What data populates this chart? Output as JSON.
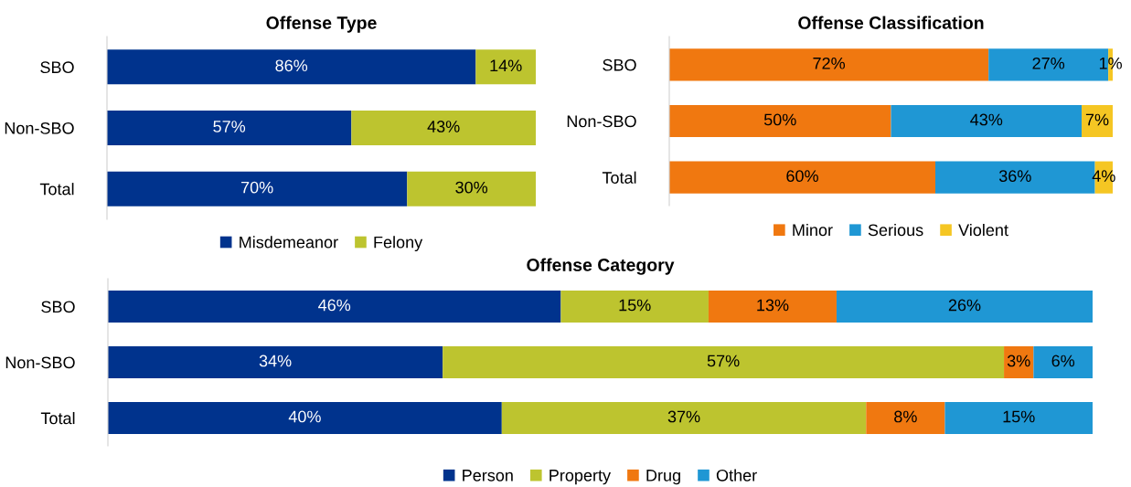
{
  "chart_data": [
    {
      "type": "bar",
      "orientation": "horizontal",
      "stacked": true,
      "title": "Offense Type",
      "categories": [
        "SBO",
        "Non-SBO",
        "Total"
      ],
      "legend": "bottom",
      "grid": false,
      "tick_labels": "y",
      "series": [
        {
          "name": "Misdemeanor",
          "color": "#00338d",
          "values": [
            86,
            57,
            70
          ],
          "value_labels": [
            "86%",
            "57%",
            "70%"
          ]
        },
        {
          "name": "Felony",
          "color": "#bdc42f",
          "values": [
            14,
            43,
            30
          ],
          "value_labels": [
            "14%",
            "43%",
            "30%"
          ]
        }
      ]
    },
    {
      "type": "bar",
      "orientation": "horizontal",
      "stacked": true,
      "title": "Offense Classification",
      "categories": [
        "SBO",
        "Non-SBO",
        "Total"
      ],
      "legend": "bottom",
      "grid": false,
      "tick_labels": "y",
      "series": [
        {
          "name": "Minor",
          "color": "#f07810",
          "values": [
            72,
            50,
            60
          ],
          "value_labels": [
            "72%",
            "50%",
            "60%"
          ]
        },
        {
          "name": "Serious",
          "color": "#1f97d4",
          "values": [
            27,
            43,
            36
          ],
          "value_labels": [
            "27%",
            "43%",
            "36%"
          ]
        },
        {
          "name": "Violent",
          "color": "#f5c623",
          "values": [
            1,
            7,
            4
          ],
          "value_labels": [
            "1%",
            "7%",
            "4%"
          ]
        }
      ]
    },
    {
      "type": "bar",
      "orientation": "horizontal",
      "stacked": true,
      "title": "Offense Category",
      "categories": [
        "SBO",
        "Non-SBO",
        "Total"
      ],
      "legend": "bottom",
      "grid": false,
      "tick_labels": "y",
      "series": [
        {
          "name": "Person",
          "color": "#00338d",
          "values": [
            46,
            34,
            40
          ],
          "value_labels": [
            "46%",
            "34%",
            "40%"
          ]
        },
        {
          "name": "Property",
          "color": "#bdc42f",
          "values": [
            15,
            57,
            37
          ],
          "value_labels": [
            "15%",
            "57%",
            "37%"
          ]
        },
        {
          "name": "Drug",
          "color": "#f07810",
          "values": [
            13,
            3,
            8
          ],
          "value_labels": [
            "13%",
            "3%",
            "8%"
          ]
        },
        {
          "name": "Other",
          "color": "#1f97d4",
          "values": [
            26,
            6,
            15
          ],
          "value_labels": [
            "26%",
            "6%",
            "15%"
          ]
        }
      ]
    }
  ]
}
